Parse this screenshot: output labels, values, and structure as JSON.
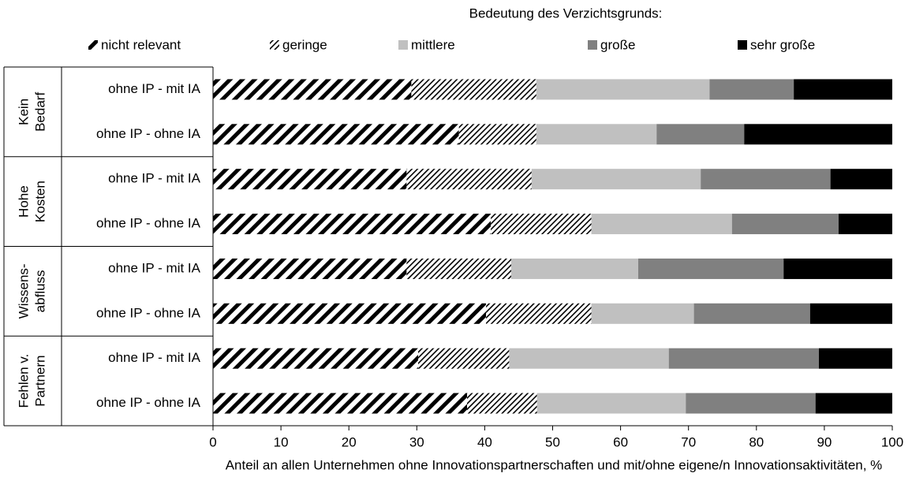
{
  "chart_data": {
    "type": "stacked-barh",
    "legend_title": "Bedeutung des Verzichtsgrunds:",
    "groups": [
      [
        "Kein",
        "Bedarf"
      ],
      [
        "Hohe",
        "Kosten"
      ],
      [
        "Wissens-",
        "abfluss"
      ],
      [
        "Fehlen v.",
        "Partnern"
      ]
    ],
    "categories": [
      "ohne IP - mit IA",
      "ohne IP - ohne IA",
      "ohne IP - mit IA",
      "ohne IP - ohne IA",
      "ohne IP - mit IA",
      "ohne IP - ohne IA",
      "ohne IP - mit IA",
      "ohne IP - ohne IA"
    ],
    "series": [
      {
        "name": "nicht relevant",
        "color": "#000000",
        "pattern": "wide-hatch",
        "values": [
          29.2,
          36.2,
          28.5,
          40.9,
          28.5,
          40.2,
          30.2,
          37.4
        ]
      },
      {
        "name": "geringe",
        "color": "#000000",
        "pattern": "fine-hatch",
        "values": [
          18.4,
          11.4,
          18.4,
          14.8,
          15.4,
          15.5,
          13.4,
          10.3
        ]
      },
      {
        "name": "mittlere",
        "color": "#c0c0c0",
        "values": [
          25.5,
          17.7,
          24.9,
          20.7,
          18.7,
          15.1,
          23.5,
          21.9
        ]
      },
      {
        "name": "große",
        "color": "#808080",
        "values": [
          12.4,
          12.9,
          19.1,
          15.7,
          21.4,
          17.1,
          22.1,
          19.1
        ]
      },
      {
        "name": "sehr große",
        "color": "#000000",
        "values": [
          14.5,
          21.8,
          9.1,
          7.9,
          16.0,
          12.1,
          10.8,
          11.3
        ]
      }
    ],
    "xlim": [
      0,
      100
    ],
    "xticks": [
      0,
      10,
      20,
      30,
      40,
      50,
      60,
      70,
      80,
      90,
      100
    ],
    "xlabel": "Anteil an allen Unternehmen ohne Innovationspartnerschaften und mit/ohne eigene/n Innovationsaktivitäten, %",
    "legend": "top"
  }
}
